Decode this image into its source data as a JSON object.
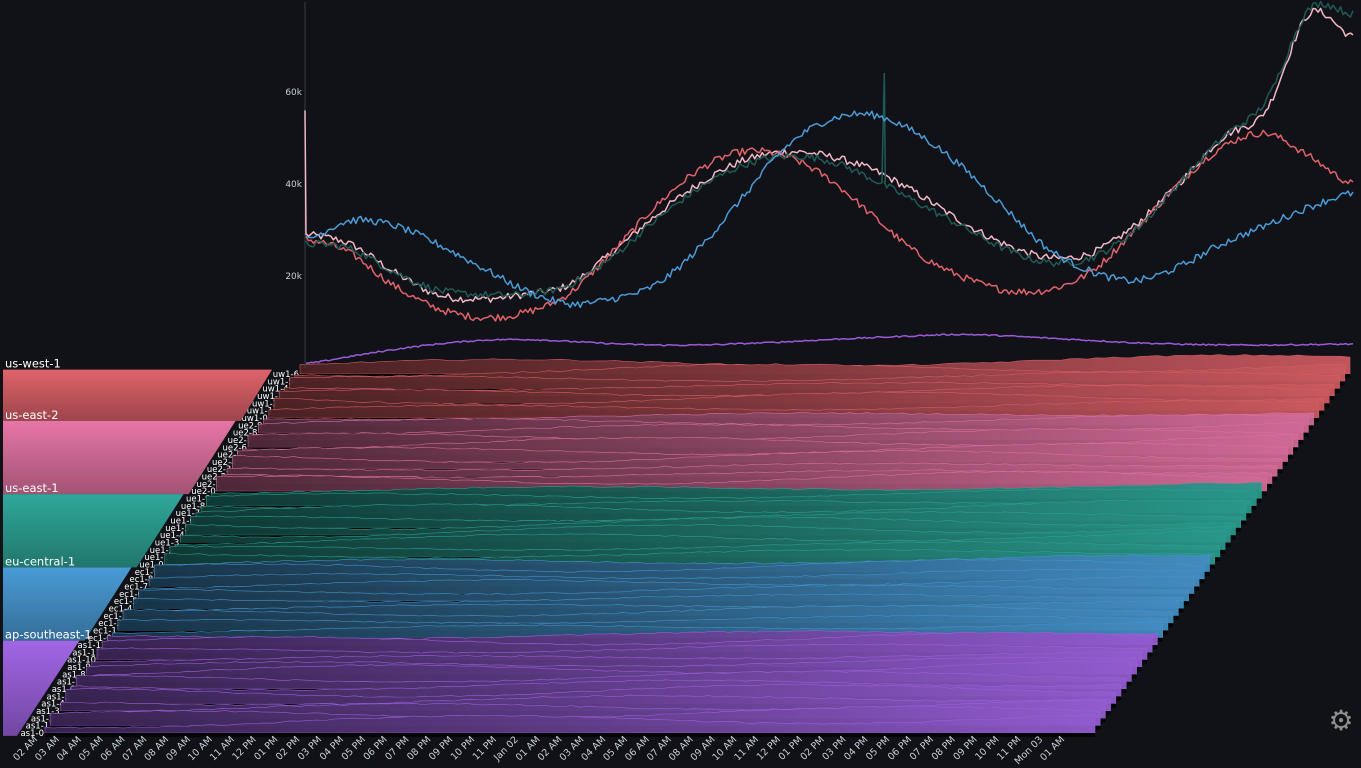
{
  "chart_data": [
    {
      "type": "line",
      "title": "",
      "ylabel": "",
      "xlabel": "",
      "ylim": [
        0,
        80000
      ],
      "y_ticks": [
        "20k",
        "40k",
        "60k"
      ],
      "y_tick_values": [
        20000,
        40000,
        60000
      ],
      "grid": false,
      "x": [
        "02 AM",
        "04 AM",
        "06 AM",
        "08 AM",
        "10 AM",
        "12 PM",
        "02 PM",
        "04 PM",
        "06 PM",
        "08 PM",
        "10 PM",
        "Jan 02",
        "02 AM",
        "04 AM",
        "06 AM",
        "08 AM",
        "10 AM",
        "12 PM",
        "02 PM",
        "04 PM",
        "06 PM",
        "08 PM",
        "10 PM",
        "Mon 03",
        "02 AM"
      ],
      "series": [
        {
          "color": "#f2b8c6",
          "values": [
            29000,
            27000,
            21000,
            16000,
            15000,
            16000,
            18000,
            25000,
            33000,
            40000,
            45000,
            47000,
            46000,
            43000,
            38000,
            32000,
            27000,
            24000,
            25000,
            31000,
            40000,
            50000,
            56000,
            77000,
            72000
          ]
        },
        {
          "color": "#e0636b",
          "values": [
            28000,
            25000,
            18000,
            13000,
            11000,
            12000,
            16000,
            25000,
            35000,
            43000,
            47000,
            46000,
            41000,
            33000,
            25000,
            20000,
            17000,
            17000,
            21000,
            30000,
            40000,
            48000,
            51000,
            46000,
            40000
          ]
        },
        {
          "color": "#205a55",
          "values": [
            27000,
            26000,
            21000,
            17000,
            16000,
            16000,
            18000,
            24000,
            32000,
            39000,
            44000,
            46000,
            45000,
            41000,
            36000,
            31000,
            26000,
            23000,
            24000,
            30000,
            40000,
            50000,
            58000,
            78000,
            77000
          ]
        },
        {
          "color": "#4a9bd6",
          "values": [
            28000,
            32000,
            31000,
            27000,
            22000,
            17000,
            14000,
            15000,
            18000,
            26000,
            37000,
            48000,
            54000,
            55000,
            51000,
            44000,
            35000,
            26000,
            21000,
            19000,
            22000,
            27000,
            31000,
            35000,
            38000
          ]
        },
        {
          "color": "#9a5ad8",
          "values": [
            1000,
            2500,
            4000,
            5200,
            6000,
            6200,
            5800,
            5300,
            5000,
            5000,
            5300,
            5700,
            6200,
            6600,
            7000,
            7300,
            7000,
            6500,
            6000,
            5500,
            5200,
            5000,
            5000,
            5100,
            5200
          ]
        }
      ]
    },
    {
      "type": "area",
      "x_ticks": [
        "02 AM",
        "03 AM",
        "04 AM",
        "05 AM",
        "06 AM",
        "07 AM",
        "08 AM",
        "09 AM",
        "10 AM",
        "11 AM",
        "12 PM",
        "01 PM",
        "02 PM",
        "03 PM",
        "04 PM",
        "05 PM",
        "06 PM",
        "07 PM",
        "08 PM",
        "09 PM",
        "10 PM",
        "11 PM",
        "Jan 02",
        "01 AM",
        "02 AM",
        "03 AM",
        "04 AM",
        "05 AM",
        "06 AM",
        "07 AM",
        "08 AM",
        "09 AM",
        "10 AM",
        "11 AM",
        "12 PM",
        "01 PM",
        "02 PM",
        "03 PM",
        "04 PM",
        "05 PM",
        "06 PM",
        "07 PM",
        "08 PM",
        "09 PM",
        "10 PM",
        "11 PM",
        "Mon 03",
        "01 AM"
      ],
      "regions": [
        {
          "name": "us-west-1",
          "color": "#e0636b",
          "hosts": [
            "uw1-0",
            "uw1-1",
            "uw1-2",
            "uw1-3",
            "uw1-4",
            "uw1-5",
            "uw1-6"
          ]
        },
        {
          "name": "us-east-2",
          "color": "#e776a6",
          "hosts": [
            "ue2-0",
            "ue2-1",
            "ue2-2",
            "ue2-3",
            "ue2-4",
            "ue2-5",
            "ue2-6",
            "ue2-7",
            "ue2-8",
            "ue2-9"
          ]
        },
        {
          "name": "us-east-1",
          "color": "#2fa89a",
          "hosts": [
            "ue1-0",
            "ue1-1",
            "ue1-2",
            "ue1-3",
            "ue1-4",
            "ue1-5",
            "ue1-6",
            "ue1-7",
            "ue1-8",
            "ue1-9"
          ]
        },
        {
          "name": "eu-central-1",
          "color": "#4a9bd6",
          "hosts": [
            "ec1-0",
            "ec1-1",
            "ec1-2",
            "ec1-3",
            "ec1-4",
            "ec1-5",
            "ec1-6",
            "ec1-7",
            "ec1-8",
            "ec1-9"
          ]
        },
        {
          "name": "ap-southeast-1",
          "color": "#a266e6",
          "hosts": [
            "as1-0",
            "as1-1",
            "as1-2",
            "as1-3",
            "as1-4",
            "as1-5",
            "as1-6",
            "as1-7",
            "as1-8",
            "as1-9",
            "as1-10",
            "as1-11",
            "as1-12"
          ]
        }
      ]
    }
  ],
  "settings": {
    "icon": "gear-icon"
  }
}
